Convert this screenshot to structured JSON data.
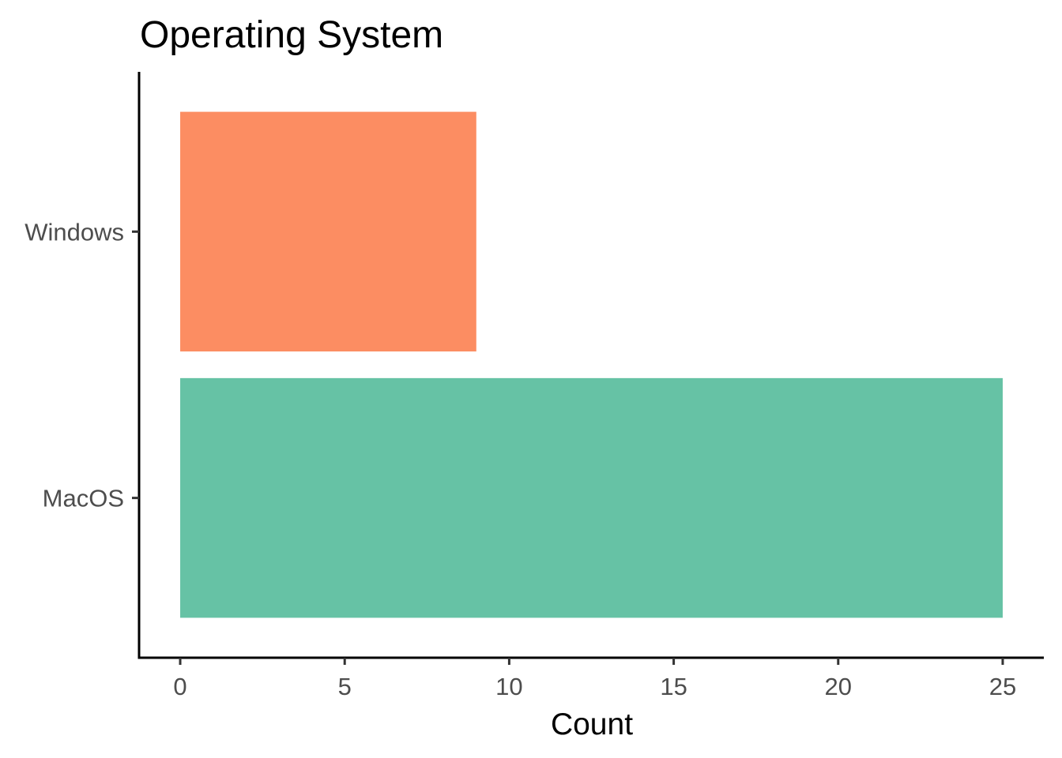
{
  "chart_data": {
    "type": "bar",
    "orientation": "horizontal",
    "title": "Operating System",
    "xlabel": "Count",
    "ylabel": "",
    "categories": [
      "MacOS",
      "Windows"
    ],
    "values": [
      25,
      9
    ],
    "colors": [
      "#66c2a5",
      "#fc8d62"
    ],
    "xlim": [
      -1.25,
      26.25
    ],
    "xticks": [
      0,
      5,
      10,
      15,
      20,
      25
    ],
    "grid": false,
    "legend": "none"
  }
}
